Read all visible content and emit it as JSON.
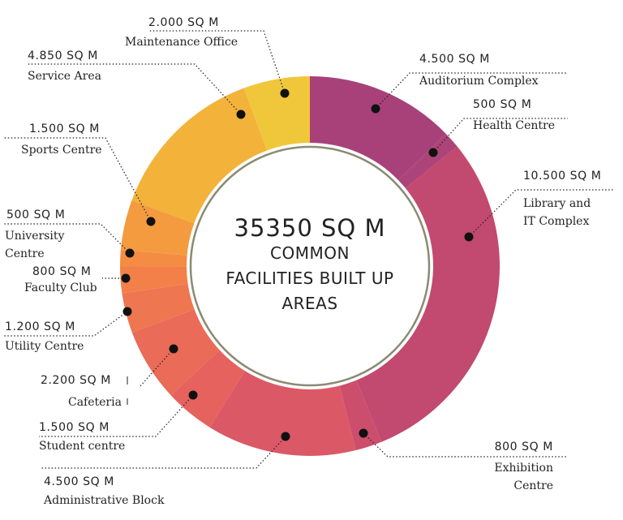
{
  "chart_data": {
    "type": "donut",
    "center_title": "35350 SQ M",
    "center_subtitle_lines": [
      "COMMON",
      "FACILITIES BUILT UP",
      "AREAS"
    ],
    "unit": "SQ M",
    "total": 35350,
    "slices": [
      {
        "name": "Auditorium Complex",
        "label_lines": [
          "Auditorium Complex"
        ],
        "value_text": "4.500 SQ M",
        "value": 4500,
        "color": "#a8417a"
      },
      {
        "name": "Health Centre",
        "label_lines": [
          "Health Centre"
        ],
        "value_text": "500 SQ M",
        "value": 500,
        "color": "#ad4479"
      },
      {
        "name": "Library and IT Complex",
        "label_lines": [
          "Library and",
          "IT Complex"
        ],
        "value_text": "10.500 SQ M",
        "value": 10500,
        "color": "#c2496f"
      },
      {
        "name": "Exhibition Centre",
        "label_lines": [
          "Exhibition",
          "Centre"
        ],
        "value_text": "800 SQ M",
        "value": 800,
        "color": "#cc4d6c"
      },
      {
        "name": "Administrative Block",
        "label_lines": [
          "Administrative Block"
        ],
        "value_text": "4.500 SQ M",
        "value": 4500,
        "color": "#db5866"
      },
      {
        "name": "Student centre",
        "label_lines": [
          "Student centre"
        ],
        "value_text": "1.500 SQ M",
        "value": 1500,
        "color": "#e5625f"
      },
      {
        "name": "Cafeteria",
        "label_lines": [
          "Cafeteria"
        ],
        "value_text": "2.200 SQ M",
        "value": 2200,
        "color": "#ea6b57"
      },
      {
        "name": "Utility Centre",
        "label_lines": [
          "Utility Centre"
        ],
        "value_text": "1.200 SQ M",
        "value": 1200,
        "color": "#ee7650"
      },
      {
        "name": "Faculty Club",
        "label_lines": [
          "Faculty Club"
        ],
        "value_text": "800 SQ M",
        "value": 800,
        "color": "#f28048"
      },
      {
        "name": "University Centre",
        "label_lines": [
          "University",
          "Centre"
        ],
        "value_text": "500 SQ M",
        "value": 500,
        "color": "#f58c43"
      },
      {
        "name": "Sports Centre",
        "label_lines": [
          "Sports Centre"
        ],
        "value_text": "1.500 SQ M",
        "value": 1500,
        "color": "#f49b40"
      },
      {
        "name": "Service Area",
        "label_lines": [
          "Service Area"
        ],
        "value_text": "4.850 SQ M",
        "value": 4850,
        "color": "#f3b23a"
      },
      {
        "name": "Maintenance Office",
        "label_lines": [
          "Maintenance Office"
        ],
        "value_text": "2.000 SQ M",
        "value": 2000,
        "color": "#f0c73a"
      }
    ]
  }
}
